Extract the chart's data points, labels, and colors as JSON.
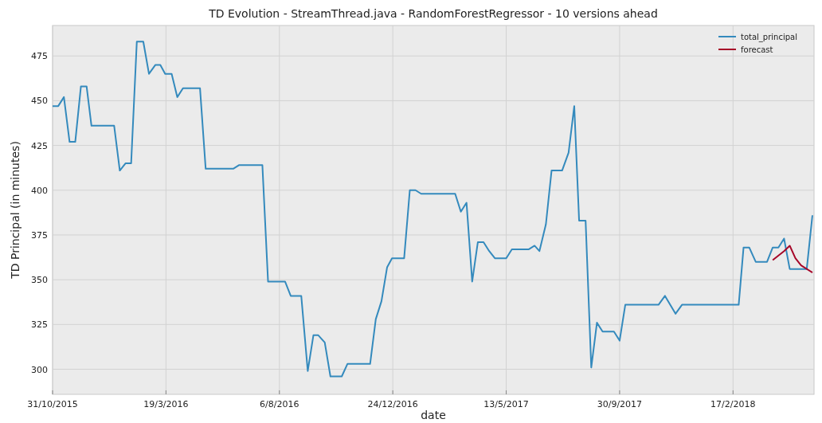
{
  "chart_data": {
    "type": "line",
    "title": "TD Evolution - StreamThread.java - RandomForestRegressor - 10 versions ahead",
    "xlabel": "date",
    "ylabel": "TD Principal (in minutes)",
    "xlim": [
      "2015-10-31",
      "2018-05-28"
    ],
    "ylim": [
      286,
      492
    ],
    "xticks": [
      {
        "value": "2015-10-31",
        "label": "31/10/2015"
      },
      {
        "value": "2016-03-19",
        "label": "19/3/2016"
      },
      {
        "value": "2016-08-06",
        "label": "6/8/2016"
      },
      {
        "value": "2016-12-24",
        "label": "24/12/2016"
      },
      {
        "value": "2017-05-13",
        "label": "13/5/2017"
      },
      {
        "value": "2017-09-30",
        "label": "30/9/2017"
      },
      {
        "value": "2018-02-17",
        "label": "17/2/2018"
      }
    ],
    "yticks": [
      300,
      325,
      350,
      375,
      400,
      425,
      450,
      475
    ],
    "grid": true,
    "legend": "top right",
    "line_style": "solid",
    "marker": "none",
    "series": [
      {
        "name": "total_principal",
        "color": "#348abd",
        "x": [
          "2015-10-31",
          "2015-11-07",
          "2015-11-14",
          "2015-11-21",
          "2015-11-28",
          "2015-12-05",
          "2015-12-12",
          "2015-12-18",
          "2016-01-15",
          "2016-01-22",
          "2016-01-29",
          "2016-02-05",
          "2016-02-12",
          "2016-02-20",
          "2016-02-27",
          "2016-03-06",
          "2016-03-12",
          "2016-03-18",
          "2016-03-26",
          "2016-04-02",
          "2016-04-09",
          "2016-04-30",
          "2016-05-07",
          "2016-06-10",
          "2016-06-17",
          "2016-07-16",
          "2016-07-23",
          "2016-08-13",
          "2016-08-20",
          "2016-09-02",
          "2016-09-10",
          "2016-09-17",
          "2016-09-23",
          "2016-10-01",
          "2016-10-08",
          "2016-10-22",
          "2016-10-29",
          "2016-11-26",
          "2016-12-03",
          "2016-12-10",
          "2016-12-17",
          "2016-12-23",
          "2017-01-07",
          "2017-01-14",
          "2017-01-21",
          "2017-01-28",
          "2017-03-11",
          "2017-03-18",
          "2017-03-25",
          "2017-04-01",
          "2017-04-08",
          "2017-04-15",
          "2017-04-22",
          "2017-04-29",
          "2017-05-13",
          "2017-05-20",
          "2017-06-10",
          "2017-06-17",
          "2017-06-23",
          "2017-07-01",
          "2017-07-08",
          "2017-07-21",
          "2017-07-29",
          "2017-08-05",
          "2017-08-11",
          "2017-08-19",
          "2017-08-26",
          "2017-09-02",
          "2017-09-09",
          "2017-09-23",
          "2017-09-30",
          "2017-10-07",
          "2017-11-17",
          "2017-11-25",
          "2017-12-08",
          "2017-12-16",
          "2018-02-24",
          "2018-03-02",
          "2018-03-09",
          "2018-03-17",
          "2018-03-31",
          "2018-04-07",
          "2018-04-14",
          "2018-04-21",
          "2018-04-28",
          "2018-05-19",
          "2018-05-26"
        ],
        "values": [
          447,
          447,
          452,
          427,
          427,
          458,
          458,
          436,
          436,
          411,
          415,
          415,
          483,
          483,
          465,
          470,
          470,
          465,
          465,
          452,
          457,
          457,
          412,
          412,
          414,
          414,
          349,
          349,
          341,
          341,
          299,
          319,
          319,
          315,
          296,
          296,
          303,
          303,
          328,
          338,
          357,
          362,
          362,
          400,
          400,
          398,
          398,
          388,
          393,
          349,
          371,
          371,
          366,
          362,
          362,
          367,
          367,
          369,
          366,
          381,
          411,
          411,
          421,
          447,
          383,
          383,
          301,
          326,
          321,
          321,
          316,
          336,
          336,
          341,
          331,
          336,
          336,
          368,
          368,
          360,
          360,
          368,
          368,
          373,
          356,
          356,
          386
        ]
      },
      {
        "name": "forecast",
        "color": "#a60628",
        "x": [
          "2018-04-07",
          "2018-04-21",
          "2018-04-28",
          "2018-05-05",
          "2018-05-12",
          "2018-05-26"
        ],
        "values": [
          361,
          366,
          369,
          362,
          358,
          354
        ]
      }
    ]
  }
}
